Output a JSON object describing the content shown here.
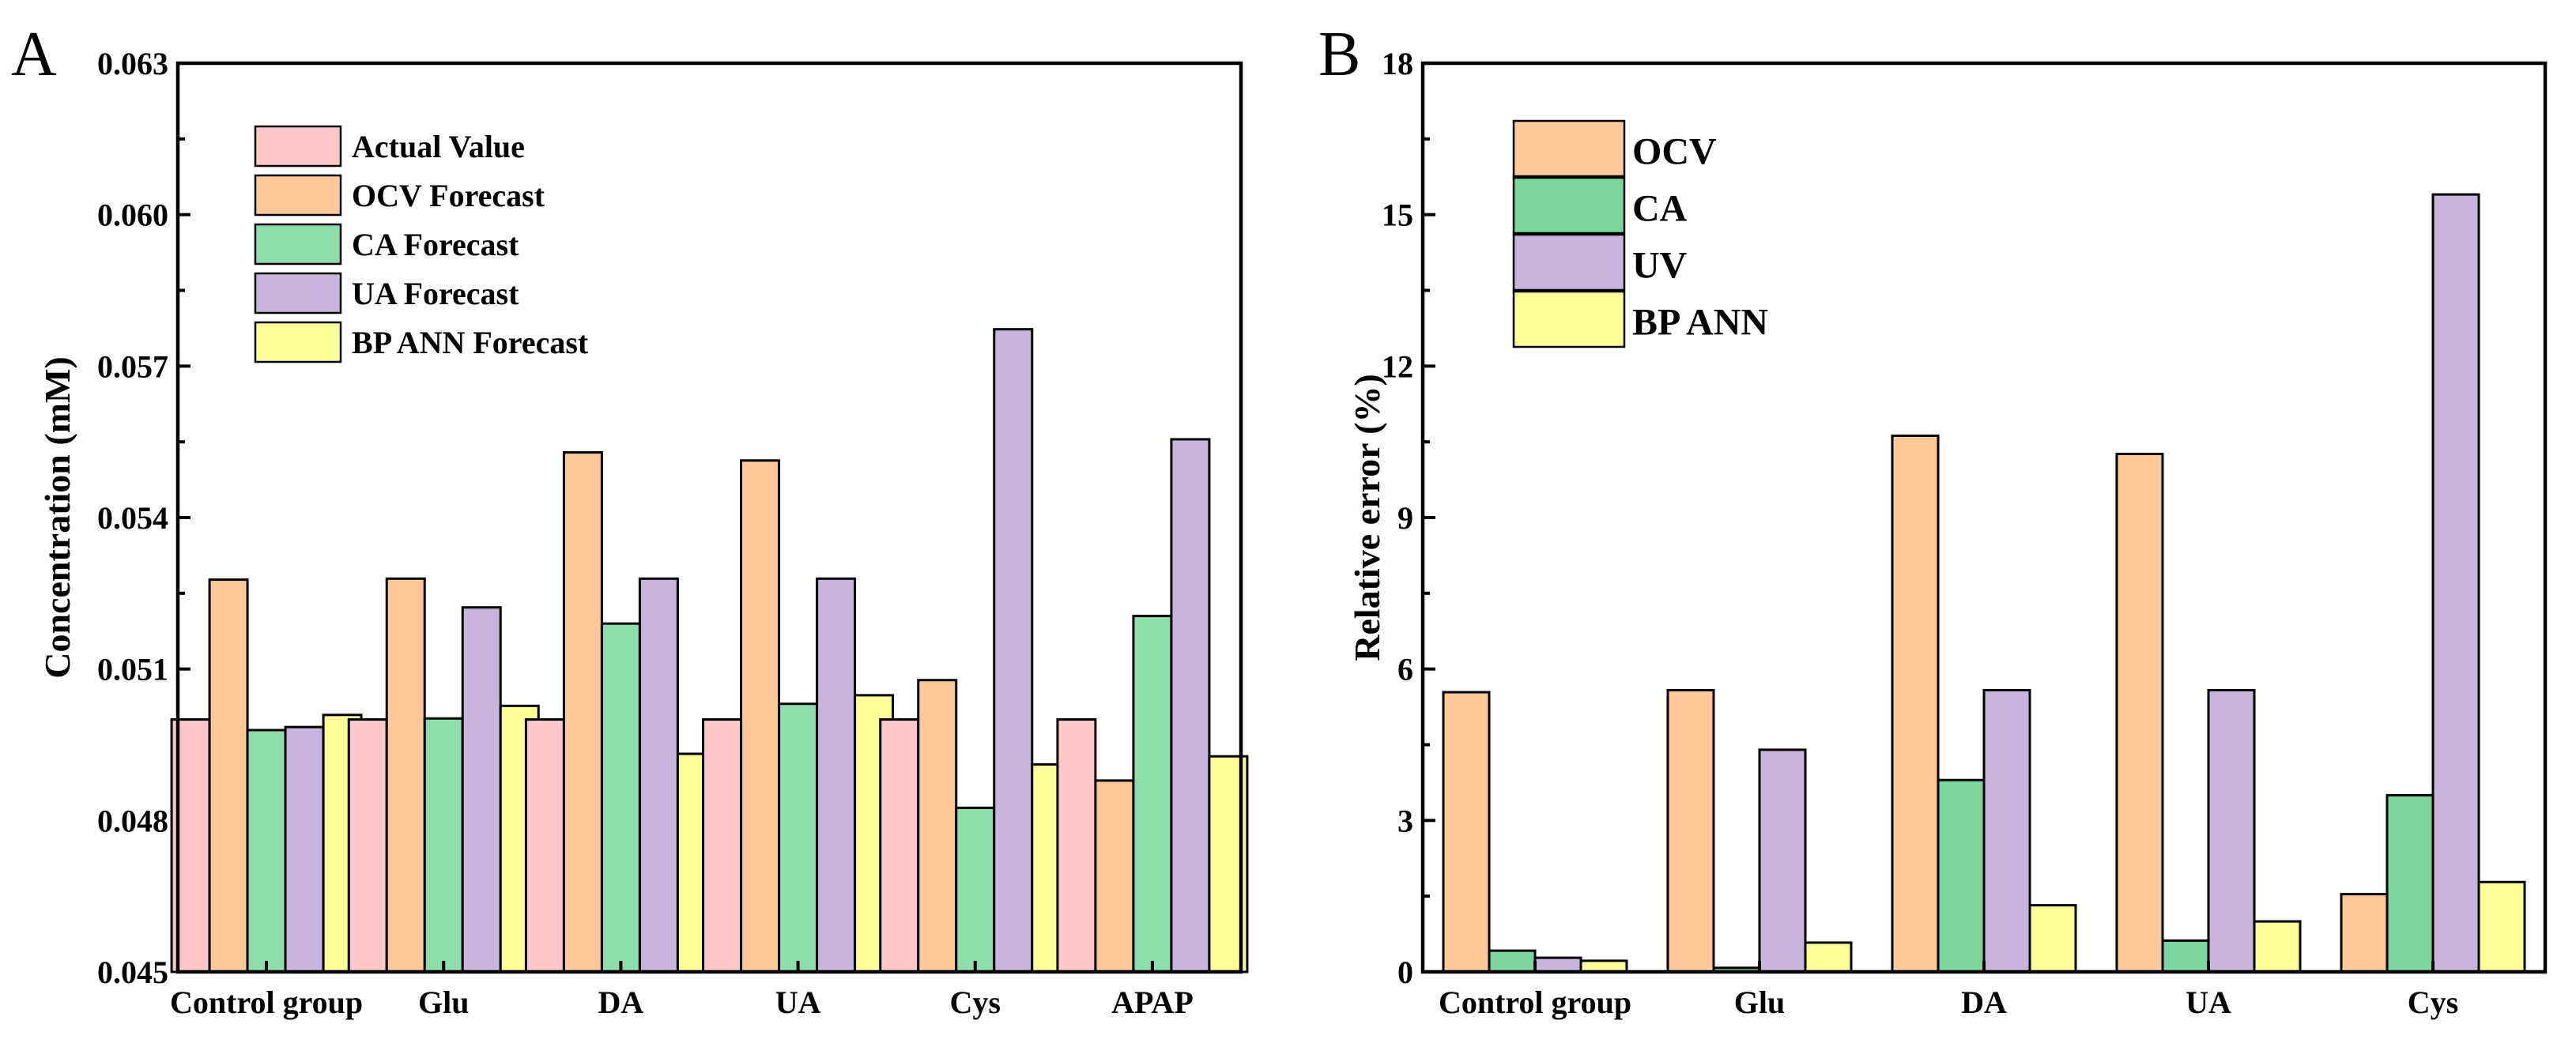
{
  "chart_data": [
    {
      "type": "bar",
      "panel_label": "A",
      "ylabel": "Concentration (mM)",
      "xlabel": "",
      "ylim": [
        0.045,
        0.063
      ],
      "yticks": [
        "0.045",
        "0.048",
        "0.051",
        "0.054",
        "0.057",
        "0.060",
        "0.063"
      ],
      "categories": [
        "Control group",
        "Glu",
        "DA",
        "UA",
        "Cys",
        "APAP"
      ],
      "legend_position": "top-left",
      "series": [
        {
          "name": "Actual Value",
          "color": "#FFC7C7",
          "values": [
            0.05,
            0.05,
            0.05,
            0.05,
            0.05,
            0.05
          ]
        },
        {
          "name": "OCV Forecast",
          "color": "#FFC89A",
          "values": [
            0.05277,
            0.05279,
            0.05529,
            0.05513,
            0.05078,
            0.04879
          ]
        },
        {
          "name": "CA Forecast",
          "color": "#8EDDAA",
          "values": [
            0.04979,
            0.05002,
            0.0519,
            0.05031,
            0.04825,
            0.05205
          ]
        },
        {
          "name": "UA Forecast",
          "color": "#C8B4DC",
          "values": [
            0.04985,
            0.05222,
            0.05279,
            0.05279,
            0.05773,
            0.05555
          ]
        },
        {
          "name": "BP ANN Forecast",
          "color": "#FFFF99",
          "values": [
            0.05009,
            0.05027,
            0.04932,
            0.05048,
            0.04911,
            0.04927
          ]
        }
      ]
    },
    {
      "type": "bar",
      "panel_label": "B",
      "ylabel": "Relative error (%)",
      "xlabel": "",
      "ylim": [
        0,
        18
      ],
      "yticks": [
        "0",
        "3",
        "6",
        "9",
        "12",
        "15",
        "18"
      ],
      "categories": [
        "Control group",
        "Glu",
        "DA",
        "UA",
        "Cys"
      ],
      "legend_position": "top-left",
      "series": [
        {
          "name": "OCV",
          "color": "#FFC89A",
          "values": [
            5.54,
            5.58,
            10.62,
            10.26,
            1.54
          ]
        },
        {
          "name": "CA",
          "color": "#7CD69C",
          "values": [
            0.42,
            0.08,
            3.8,
            0.62,
            3.5
          ]
        },
        {
          "name": "UV",
          "color": "#C8B4DC",
          "values": [
            0.28,
            4.4,
            5.58,
            5.58,
            15.4
          ]
        },
        {
          "name": "BP ANN",
          "color": "#FFFF99",
          "values": [
            0.22,
            0.58,
            1.32,
            1.0,
            1.78
          ]
        }
      ]
    }
  ]
}
